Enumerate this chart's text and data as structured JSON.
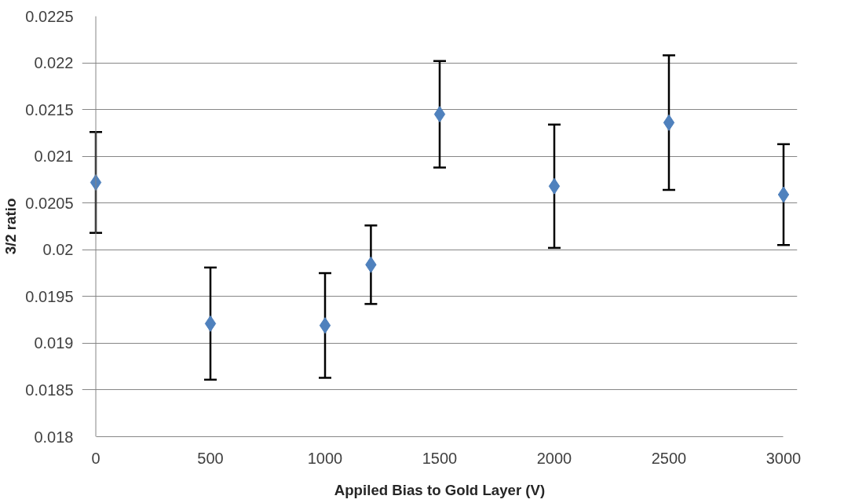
{
  "chart_data": {
    "type": "scatter",
    "xlabel": "Appiled Bias to Gold Layer (V)",
    "ylabel": "3/2 ratio",
    "x": [
      0,
      500,
      1000,
      1200,
      1500,
      2000,
      2500,
      3000
    ],
    "values": [
      0.02072,
      0.01921,
      0.01919,
      0.01984,
      0.02145,
      0.02068,
      0.02136,
      0.02059
    ],
    "errors": [
      0.00054,
      0.0006,
      0.00056,
      0.00042,
      0.00057,
      0.00066,
      0.00072,
      0.00054
    ],
    "color": "#4f81bd",
    "marker": "diamond",
    "xlim": [
      0,
      3000
    ],
    "xticks": [
      0,
      500,
      1000,
      1500,
      2000,
      2500,
      3000
    ],
    "ylim": [
      0.018,
      0.0225
    ],
    "yticks": [
      0.018,
      0.0185,
      0.019,
      0.0195,
      0.02,
      0.0205,
      0.021,
      0.0215,
      0.022,
      0.0225
    ],
    "grid": "y"
  }
}
